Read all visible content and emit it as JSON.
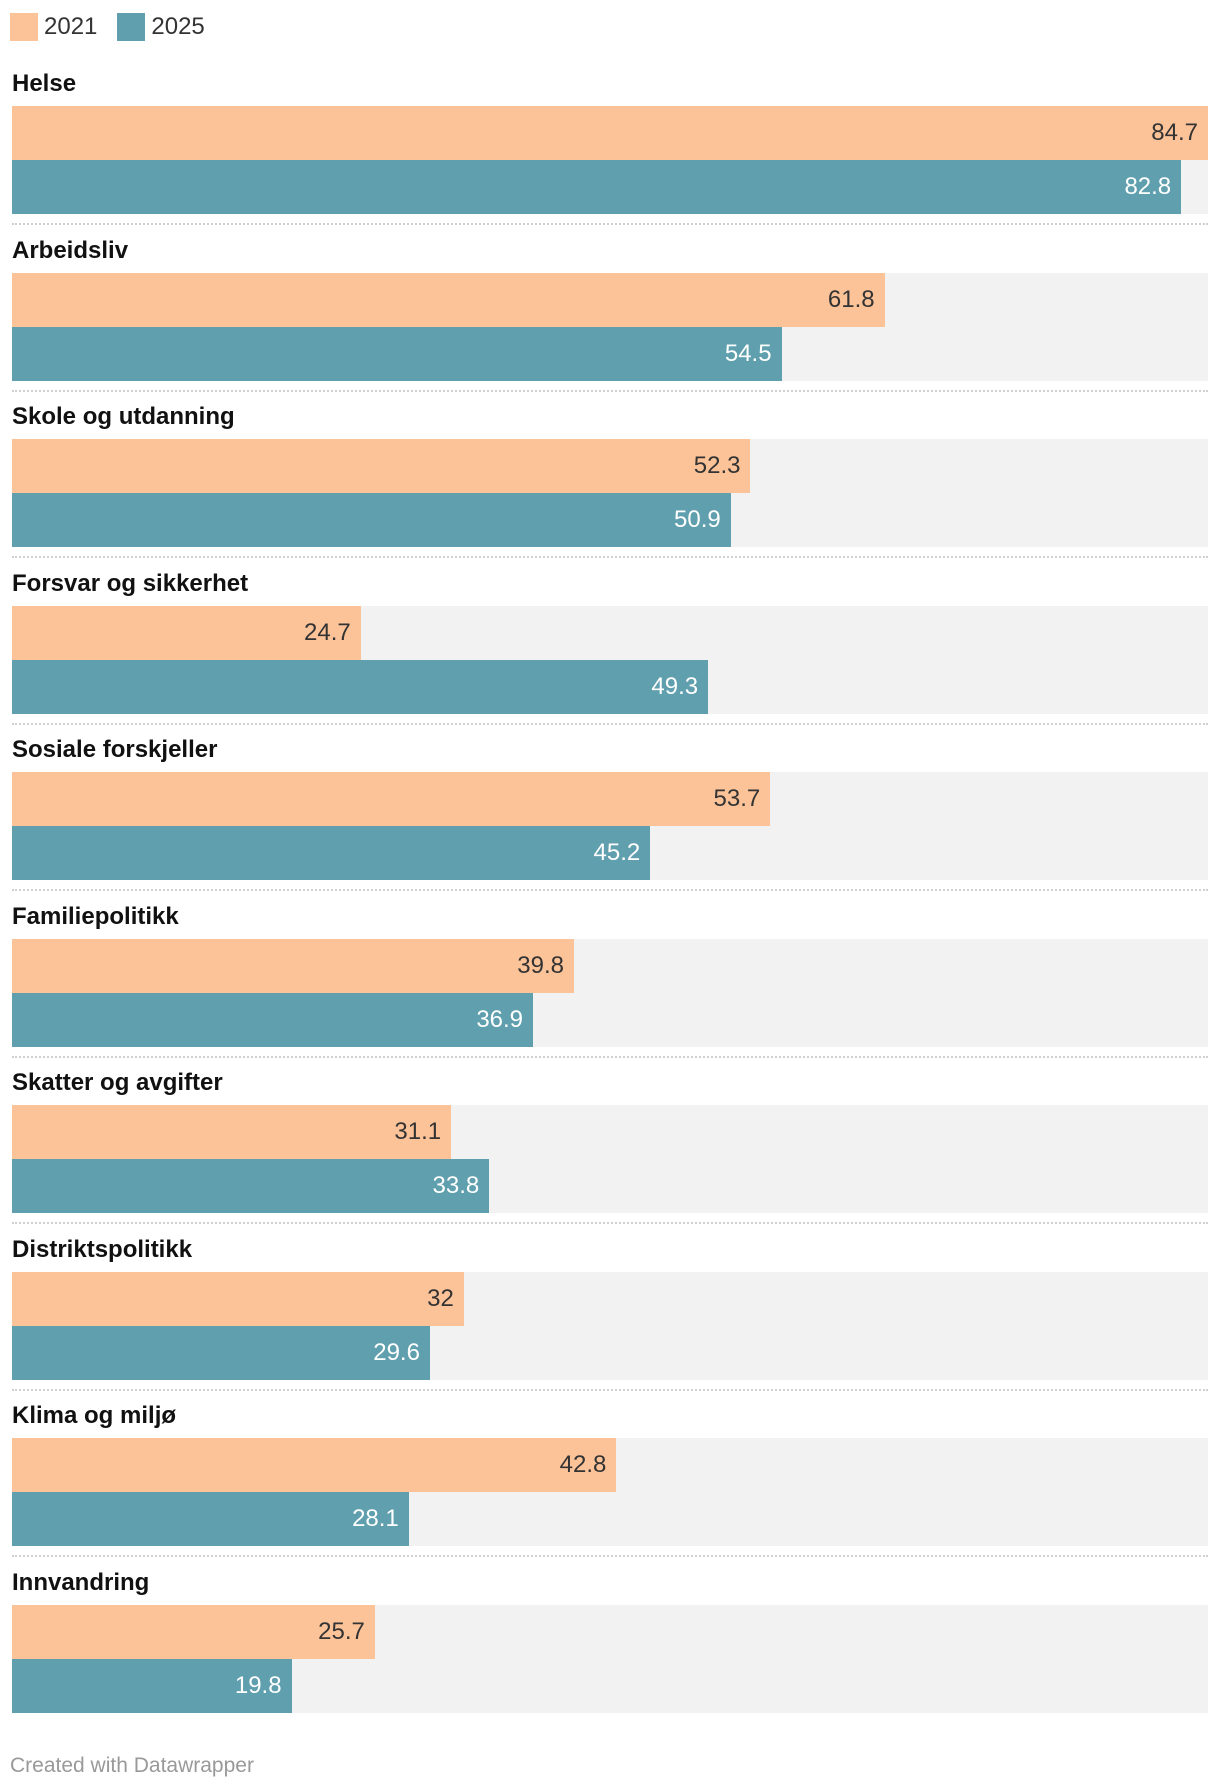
{
  "legend": [
    {
      "label": "2021",
      "color": "#fdc398"
    },
    {
      "label": "2025",
      "color": "#5f9fae"
    }
  ],
  "chart_data": {
    "type": "bar",
    "orientation": "horizontal",
    "xlim": [
      0,
      84.7
    ],
    "categories": [
      "Helse",
      "Arbeidsliv",
      "Skole og utdanning",
      "Forsvar og sikkerhet",
      "Sosiale forskjeller",
      "Familiepolitikk",
      "Skatter og avgifter",
      "Distriktspolitikk",
      "Klima og miljø",
      "Innvandring"
    ],
    "series": [
      {
        "name": "2021",
        "color": "#fdc398",
        "label_color": "#333333",
        "values": [
          84.7,
          61.8,
          52.3,
          24.7,
          53.7,
          39.8,
          31.1,
          32,
          42.8,
          25.7
        ]
      },
      {
        "name": "2025",
        "color": "#5f9fae",
        "label_color": "#ffffff",
        "values": [
          82.8,
          54.5,
          50.9,
          49.3,
          45.2,
          36.9,
          33.8,
          29.6,
          28.1,
          19.8
        ]
      }
    ]
  },
  "footer": {
    "text": "Created with Datawrapper"
  }
}
